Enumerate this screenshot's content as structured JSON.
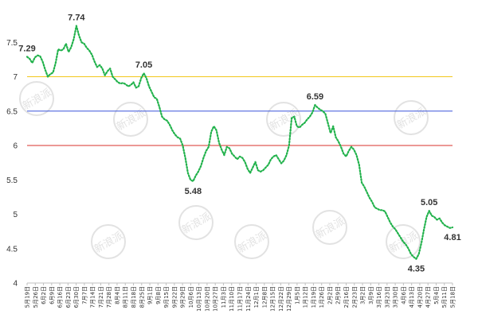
{
  "chart_data": {
    "type": "line",
    "title": "",
    "xlabel": "",
    "ylabel": "",
    "ylim": [
      4,
      8
    ],
    "yticks": [
      "4",
      "4.5",
      "5",
      "5.5",
      "6",
      "6.5",
      "7",
      "7.5"
    ],
    "grid": false,
    "legend": "none",
    "x_tick_labels": [
      "5月19日",
      "5月26日",
      "6月2日",
      "6月9日",
      "6月16日",
      "6月23日",
      "6月30日",
      "7月7日",
      "7月14日",
      "7月21日",
      "7月28日",
      "8月4日",
      "8月11日",
      "8月18日",
      "8月25日",
      "9月1日",
      "9月8日",
      "9月15日",
      "9月22日",
      "9月29日",
      "10月6日",
      "10月13日",
      "10月20日",
      "10月27日",
      "11月3日",
      "11月10日",
      "11月17日",
      "11月24日",
      "12月1日",
      "12月8日",
      "12月15日",
      "12月22日",
      "12月29日",
      "1月5日",
      "1月12日",
      "1月19日",
      "1月26日",
      "2月2日",
      "2月9日",
      "2月16日",
      "2月23日",
      "3月2日",
      "3月9日",
      "3月16日",
      "3月23日",
      "3月30日",
      "4月6日",
      "4月13日",
      "4月20日",
      "4月27日",
      "5月4日",
      "5月11日",
      "5月18日"
    ],
    "series": [
      {
        "color": "#22b24c",
        "style": "dotted",
        "values": [
          7.29,
          7.26,
          7.2,
          7.28,
          7.31,
          7.3,
          7.22,
          7.1,
          7.0,
          7.04,
          7.06,
          7.2,
          7.4,
          7.38,
          7.4,
          7.48,
          7.36,
          7.43,
          7.55,
          7.74,
          7.6,
          7.5,
          7.48,
          7.42,
          7.38,
          7.32,
          7.22,
          7.14,
          7.17,
          7.12,
          7.02,
          7.08,
          7.12,
          7.0,
          6.96,
          6.92,
          6.9,
          6.91,
          6.89,
          6.86,
          6.88,
          6.92,
          6.84,
          6.86,
          6.98,
          7.05,
          6.98,
          6.86,
          6.78,
          6.7,
          6.68,
          6.56,
          6.42,
          6.38,
          6.36,
          6.3,
          6.22,
          6.16,
          6.12,
          6.1,
          6.0,
          5.82,
          5.6,
          5.5,
          5.48,
          5.56,
          5.62,
          5.7,
          5.82,
          5.92,
          5.98,
          6.2,
          6.28,
          6.22,
          6.04,
          5.94,
          5.86,
          5.98,
          5.96,
          5.88,
          5.84,
          5.8,
          5.84,
          5.82,
          5.76,
          5.66,
          5.6,
          5.68,
          5.76,
          5.64,
          5.62,
          5.64,
          5.68,
          5.72,
          5.8,
          5.84,
          5.86,
          5.8,
          5.74,
          5.78,
          5.86,
          6.0,
          6.4,
          6.42,
          6.28,
          6.26,
          6.3,
          6.33,
          6.38,
          6.42,
          6.48,
          6.59,
          6.55,
          6.52,
          6.5,
          6.46,
          6.32,
          6.18,
          6.28,
          6.12,
          6.06,
          5.98,
          5.88,
          5.84,
          5.92,
          5.98,
          5.94,
          5.86,
          5.72,
          5.46,
          5.4,
          5.32,
          5.24,
          5.18,
          5.1,
          5.08,
          5.06,
          5.06,
          5.04,
          4.96,
          4.88,
          4.82,
          4.78,
          4.72,
          4.66,
          4.6,
          4.56,
          4.5,
          4.42,
          4.38,
          4.35,
          4.42,
          4.58,
          4.78,
          4.96,
          5.05,
          4.98,
          4.96,
          4.92,
          4.94,
          4.88,
          4.84,
          4.82,
          4.8,
          4.81
        ]
      }
    ],
    "data_labels": [
      {
        "index": 0,
        "text": "7.29",
        "position": "above"
      },
      {
        "index": 19,
        "text": "7.74",
        "position": "above"
      },
      {
        "index": 45,
        "text": "7.05",
        "position": "above"
      },
      {
        "index": 64,
        "text": "5.48",
        "position": "below"
      },
      {
        "index": 111,
        "text": "6.59",
        "position": "above"
      },
      {
        "index": 150,
        "text": "4.35",
        "position": "below"
      },
      {
        "index": 155,
        "text": "5.05",
        "position": "above"
      },
      {
        "index": 164,
        "text": "4.81",
        "position": "below"
      }
    ],
    "reference_lines": [
      {
        "y": 7.0,
        "color": "#f2c71b"
      },
      {
        "y": 6.5,
        "color": "#3a55d9"
      },
      {
        "y": 6.0,
        "color": "#d9322b"
      }
    ]
  },
  "watermark": {
    "text": "新浪派",
    "color": "#e2e2e2"
  }
}
